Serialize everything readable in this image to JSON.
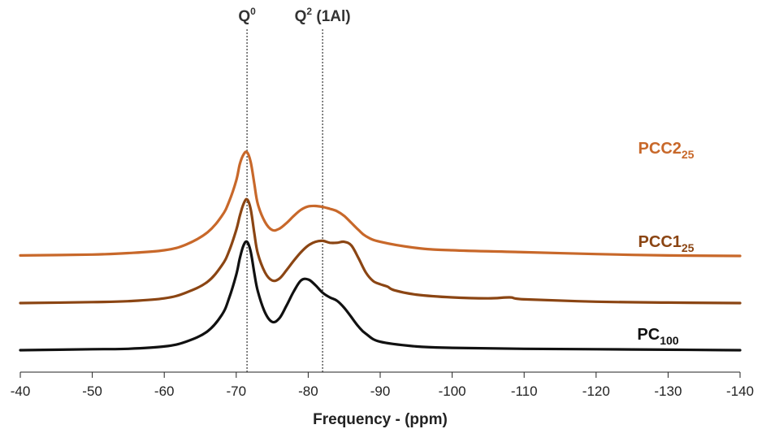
{
  "chart_data": {
    "type": "line",
    "xlabel": "Frequency - (ppm)",
    "xlim": [
      -40,
      -140
    ],
    "x_reversed": true,
    "x_ticks": [
      "-40",
      "-50",
      "-60",
      "-70",
      "-80",
      "-90",
      "-100",
      "-110",
      "-120",
      "-130",
      "-140"
    ],
    "y_axis_shown": false,
    "grid": false,
    "markers": [
      {
        "label_main": "Q",
        "label_sup": "0",
        "label_rest": "",
        "x": -71.5
      },
      {
        "label_main": "Q",
        "label_sup": "2",
        "label_rest": " (1Al)",
        "x": -82
      }
    ],
    "series": [
      {
        "label_main": "PCC2",
        "label_sub": "25",
        "color": "#c8682a",
        "baseline": 2.0,
        "x": [
          -40,
          -50,
          -55,
          -60,
          -63,
          -66,
          -68,
          -69,
          -70,
          -70.5,
          -71,
          -71.5,
          -72,
          -72.5,
          -73,
          -74,
          -75,
          -76,
          -77,
          -78,
          -79,
          -80,
          -81,
          -82,
          -83,
          -84,
          -85,
          -86,
          -87,
          -88,
          -90,
          -95,
          -100,
          -110,
          -120,
          -130,
          -140
        ],
        "y": [
          0.01,
          0.03,
          0.06,
          0.12,
          0.24,
          0.5,
          0.85,
          1.15,
          1.6,
          1.95,
          2.15,
          2.2,
          2.0,
          1.55,
          1.1,
          0.72,
          0.55,
          0.58,
          0.7,
          0.85,
          0.98,
          1.05,
          1.06,
          1.04,
          1.0,
          0.95,
          0.85,
          0.7,
          0.55,
          0.42,
          0.3,
          0.17,
          0.12,
          0.08,
          0.04,
          0.01,
          0.0
        ]
      },
      {
        "label_main": "PCC1",
        "label_sub": "25",
        "color": "#8b4513",
        "baseline": 1.0,
        "x": [
          -40,
          -50,
          -55,
          -60,
          -63,
          -66,
          -68,
          -69,
          -70,
          -70.5,
          -71,
          -71.5,
          -72,
          -72.5,
          -73,
          -74,
          -75,
          -76,
          -77,
          -78,
          -79,
          -80,
          -81,
          -82,
          -83,
          -84,
          -85,
          -86,
          -87,
          -88,
          -89,
          -90,
          -91,
          -92,
          -95,
          -100,
          -105,
          -108,
          -110,
          -120,
          -130,
          -140
        ],
        "y": [
          0.0,
          0.02,
          0.04,
          0.1,
          0.22,
          0.45,
          0.8,
          1.1,
          1.55,
          1.85,
          2.1,
          2.2,
          2.0,
          1.5,
          1.05,
          0.65,
          0.48,
          0.52,
          0.7,
          0.9,
          1.08,
          1.22,
          1.3,
          1.32,
          1.28,
          1.28,
          1.3,
          1.22,
          0.95,
          0.65,
          0.47,
          0.4,
          0.35,
          0.27,
          0.18,
          0.12,
          0.1,
          0.12,
          0.08,
          0.03,
          0.01,
          0.0
        ]
      },
      {
        "label_main": "PC",
        "label_sub": "100",
        "color": "#111111",
        "baseline": 0.0,
        "x": [
          -40,
          -50,
          -55,
          -60,
          -63,
          -66,
          -68,
          -69,
          -70,
          -70.5,
          -71,
          -71.5,
          -72,
          -72.5,
          -73,
          -74,
          -75,
          -76,
          -77,
          -78,
          -79,
          -80,
          -81,
          -82,
          -83,
          -84,
          -85,
          -86,
          -87,
          -88,
          -90,
          -95,
          -100,
          -110,
          -120,
          -130,
          -140
        ],
        "y": [
          0.0,
          0.02,
          0.03,
          0.08,
          0.18,
          0.4,
          0.75,
          1.1,
          1.6,
          1.95,
          2.22,
          2.3,
          2.1,
          1.65,
          1.25,
          0.8,
          0.6,
          0.68,
          0.95,
          1.25,
          1.48,
          1.5,
          1.38,
          1.22,
          1.12,
          1.05,
          0.9,
          0.7,
          0.5,
          0.35,
          0.18,
          0.08,
          0.05,
          0.03,
          0.02,
          0.01,
          0.0
        ]
      }
    ]
  }
}
